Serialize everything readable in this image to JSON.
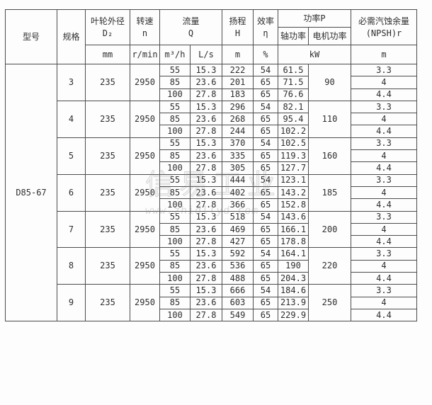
{
  "table": {
    "model_label": "型号",
    "spec_label": "规格",
    "model": "D85-67",
    "header": {
      "impeller": {
        "line1": "叶轮外径",
        "line2": "D₂",
        "unit": "mm"
      },
      "speed": {
        "line1": "转速",
        "line2": "n",
        "unit": "r/min"
      },
      "flow": {
        "line1": "流量",
        "line2": "Q",
        "unit1": "m³/h",
        "unit2": "L/s"
      },
      "head": {
        "line1": "扬程",
        "line2": "H",
        "unit": "m"
      },
      "efficiency": {
        "line1": "效率",
        "line2": "η",
        "unit": "%"
      },
      "power": {
        "label": "功率P",
        "shaft": "轴功率",
        "motor": "电机功率",
        "unit": "kW"
      },
      "npsh": {
        "line1": "必需汽蚀余量",
        "line2": "(NPSH)r",
        "unit": "m"
      }
    },
    "groups": [
      {
        "spec": "3",
        "d2": "235",
        "n": "2950",
        "motor_kw": "90",
        "rows": [
          {
            "q_m3h": "55",
            "q_ls": "15.3",
            "head_m": "222",
            "eff": "54",
            "shaft_kw": "61.5",
            "npsh": "3.3"
          },
          {
            "q_m3h": "85",
            "q_ls": "23.6",
            "head_m": "201",
            "eff": "65",
            "shaft_kw": "71.5",
            "npsh": "4"
          },
          {
            "q_m3h": "100",
            "q_ls": "27.8",
            "head_m": "183",
            "eff": "65",
            "shaft_kw": "76.6",
            "npsh": "4.4"
          }
        ]
      },
      {
        "spec": "4",
        "d2": "235",
        "n": "2950",
        "motor_kw": "110",
        "rows": [
          {
            "q_m3h": "55",
            "q_ls": "15.3",
            "head_m": "296",
            "eff": "54",
            "shaft_kw": "82.1",
            "npsh": "3.3"
          },
          {
            "q_m3h": "85",
            "q_ls": "23.6",
            "head_m": "268",
            "eff": "65",
            "shaft_kw": "95.4",
            "npsh": "4"
          },
          {
            "q_m3h": "100",
            "q_ls": "27.8",
            "head_m": "244",
            "eff": "65",
            "shaft_kw": "102.2",
            "npsh": "4.4"
          }
        ]
      },
      {
        "spec": "5",
        "d2": "235",
        "n": "2950",
        "motor_kw": "160",
        "rows": [
          {
            "q_m3h": "55",
            "q_ls": "15.3",
            "head_m": "370",
            "eff": "54",
            "shaft_kw": "102.5",
            "npsh": "3.3"
          },
          {
            "q_m3h": "85",
            "q_ls": "23.6",
            "head_m": "335",
            "eff": "65",
            "shaft_kw": "119.3",
            "npsh": "4"
          },
          {
            "q_m3h": "100",
            "q_ls": "27.8",
            "head_m": "305",
            "eff": "65",
            "shaft_kw": "127.7",
            "npsh": "4.4"
          }
        ]
      },
      {
        "spec": "6",
        "d2": "235",
        "n": "2950",
        "motor_kw": "185",
        "rows": [
          {
            "q_m3h": "55",
            "q_ls": "15.3",
            "head_m": "444",
            "eff": "54",
            "shaft_kw": "123.1",
            "npsh": "3.3"
          },
          {
            "q_m3h": "85",
            "q_ls": "23.6",
            "head_m": "402",
            "eff": "65",
            "shaft_kw": "143.2",
            "npsh": "4"
          },
          {
            "q_m3h": "100",
            "q_ls": "27.8",
            "head_m": "366",
            "eff": "65",
            "shaft_kw": "152.8",
            "npsh": "4.4"
          }
        ]
      },
      {
        "spec": "7",
        "d2": "235",
        "n": "2950",
        "motor_kw": "200",
        "rows": [
          {
            "q_m3h": "55",
            "q_ls": "15.3",
            "head_m": "518",
            "eff": "54",
            "shaft_kw": "143.6",
            "npsh": "3.3"
          },
          {
            "q_m3h": "85",
            "q_ls": "23.6",
            "head_m": "469",
            "eff": "65",
            "shaft_kw": "166.1",
            "npsh": "4"
          },
          {
            "q_m3h": "100",
            "q_ls": "27.8",
            "head_m": "427",
            "eff": "65",
            "shaft_kw": "178.8",
            "npsh": "4.4"
          }
        ]
      },
      {
        "spec": "8",
        "d2": "235",
        "n": "2950",
        "motor_kw": "220",
        "rows": [
          {
            "q_m3h": "55",
            "q_ls": "15.3",
            "head_m": "592",
            "eff": "54",
            "shaft_kw": "164.1",
            "npsh": "3.3"
          },
          {
            "q_m3h": "85",
            "q_ls": "23.6",
            "head_m": "536",
            "eff": "65",
            "shaft_kw": "190",
            "npsh": "4"
          },
          {
            "q_m3h": "100",
            "q_ls": "27.8",
            "head_m": "488",
            "eff": "65",
            "shaft_kw": "204.3",
            "npsh": "4.4"
          }
        ]
      },
      {
        "spec": "9",
        "d2": "235",
        "n": "2950",
        "motor_kw": "250",
        "rows": [
          {
            "q_m3h": "55",
            "q_ls": "15.3",
            "head_m": "666",
            "eff": "54",
            "shaft_kw": "184.6",
            "npsh": "3.3"
          },
          {
            "q_m3h": "85",
            "q_ls": "23.6",
            "head_m": "603",
            "eff": "65",
            "shaft_kw": "213.9",
            "npsh": "4"
          },
          {
            "q_m3h": "100",
            "q_ls": "27.8",
            "head_m": "549",
            "eff": "65",
            "shaft_kw": "229.9",
            "npsh": "4.4"
          }
        ]
      }
    ]
  },
  "watermark": {
    "logo_text": "信易工业",
    "url_text": "www.zhidllyd.com"
  },
  "colors": {
    "border": "#4c4c4c",
    "text": "#2e2e2e",
    "background": "#fdfdfd"
  }
}
